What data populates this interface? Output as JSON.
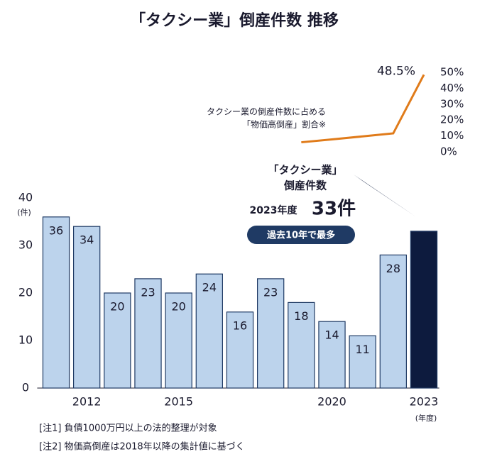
{
  "chart_data": {
    "type": "bar",
    "title": "「タクシー業」倒産件数 推移",
    "categories": [
      null,
      "2012",
      null,
      null,
      "2015",
      null,
      null,
      null,
      null,
      "2020",
      null,
      null,
      "2023"
    ],
    "values": [
      36,
      34,
      20,
      23,
      20,
      24,
      16,
      23,
      18,
      14,
      11,
      28,
      33
    ],
    "value_labels": [
      "36",
      "34",
      "20",
      "23",
      "20",
      "24",
      "16",
      "23",
      "18",
      "14",
      "11",
      "28",
      null
    ],
    "colors": [
      "#bcd3ec",
      "#bcd3ec",
      "#bcd3ec",
      "#bcd3ec",
      "#bcd3ec",
      "#bcd3ec",
      "#bcd3ec",
      "#bcd3ec",
      "#bcd3ec",
      "#bcd3ec",
      "#bcd3ec",
      "#bcd3ec",
      "#0d1b3e"
    ],
    "ylim": [
      0,
      40
    ],
    "yticks": [
      0,
      10,
      20,
      30,
      40
    ],
    "y_unit": "(件)",
    "x_unit": "(年度)",
    "series": [
      {
        "color": "#e07b1a",
        "axis": "y2",
        "values": [
          null,
          null,
          null,
          null,
          null,
          null,
          null,
          null,
          6,
          7.8,
          9.7,
          11.6,
          48.5
        ],
        "value_labels": [
          null,
          null,
          null,
          null,
          null,
          null,
          null,
          null,
          null,
          null,
          null,
          null,
          "48.5%"
        ]
      }
    ],
    "y2lim": [
      0,
      50
    ],
    "y2ticks": [
      {
        "value": 0,
        "label": "0%"
      },
      {
        "value": 10,
        "label": "10%"
      },
      {
        "value": 20,
        "label": "20%"
      },
      {
        "value": 30,
        "label": "30%"
      },
      {
        "value": 40,
        "label": "40%"
      },
      {
        "value": 50,
        "label": "50%"
      }
    ],
    "line_label": [
      "タクシー業の倒産件数に占める",
      "「物価高倒産」割合※"
    ],
    "callout": {
      "title": [
        "「タクシー業」",
        "倒産件数"
      ],
      "year": "2023年度",
      "count": "33件",
      "badge": "過去10年で最多"
    },
    "notes": [
      "[注1] 負債1000万円以上の法的整理が対象",
      "[注2] 物価高倒産は2018年以降の集計値に基づく"
    ]
  }
}
